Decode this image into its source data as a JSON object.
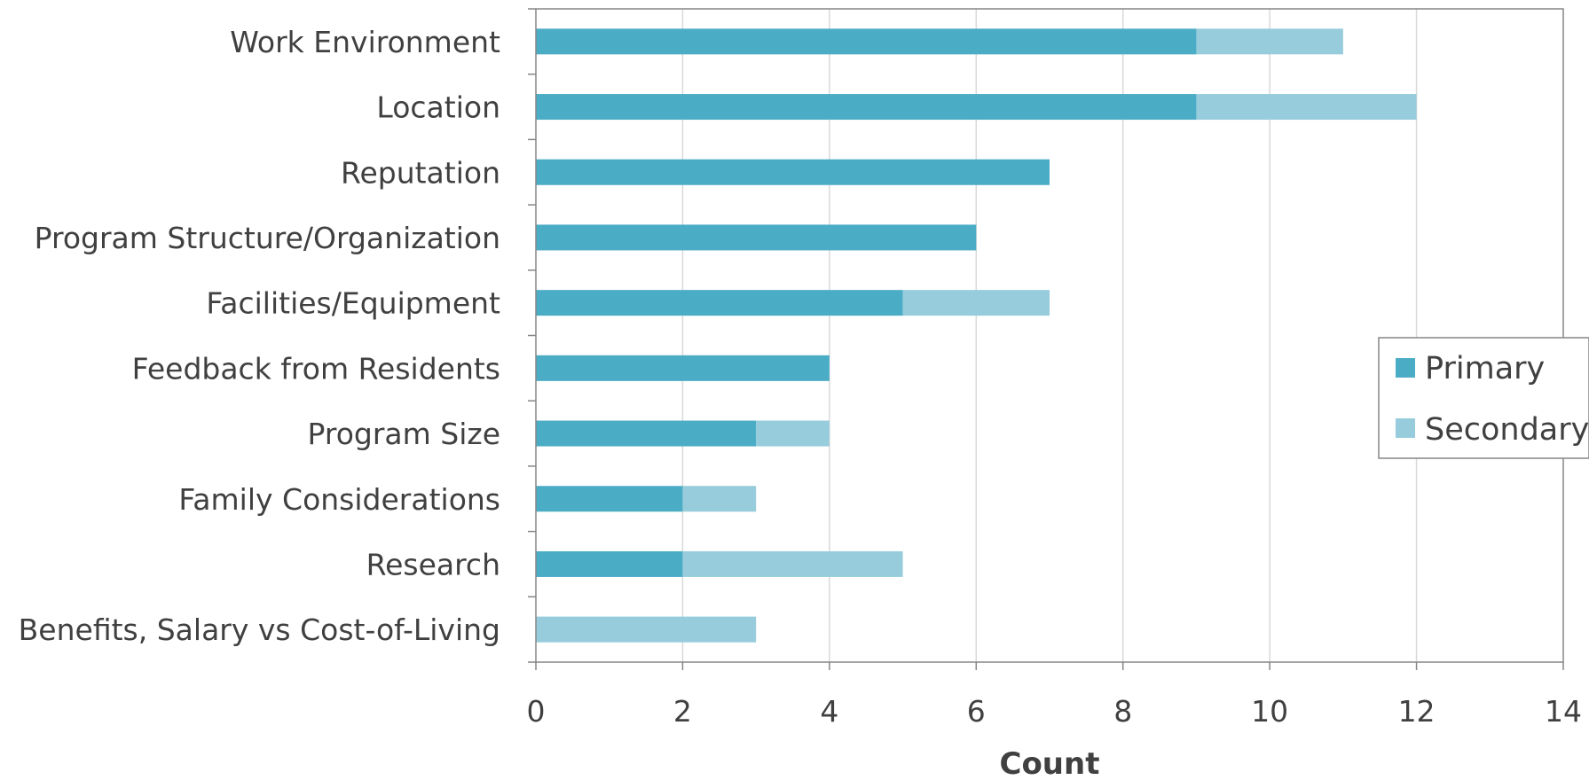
{
  "chart_data": {
    "type": "bar",
    "orientation": "horizontal",
    "stacked": true,
    "categories": [
      "Work Environment",
      "Location",
      "Reputation",
      "Program Structure/Organization",
      "Facilities/Equipment",
      "Feedback from Residents",
      "Program Size",
      "Family Considerations",
      "Research",
      "Benefits, Salary vs Cost-of-Living"
    ],
    "series": [
      {
        "name": "Primary",
        "color": "#4BACC6",
        "values": [
          9,
          9,
          7,
          6,
          5,
          4,
          3,
          2,
          2,
          0
        ]
      },
      {
        "name": "Secondary",
        "color": "#96CCDC",
        "values": [
          2,
          3,
          0,
          0,
          2,
          0,
          1,
          1,
          3,
          3
        ]
      }
    ],
    "xlabel": "Count",
    "ylabel": "",
    "xlim": [
      0,
      14
    ],
    "xticks": [
      "0",
      "2",
      "4",
      "6",
      "8",
      "10",
      "12",
      "14"
    ],
    "grid": "vertical",
    "legend_position": "right"
  }
}
